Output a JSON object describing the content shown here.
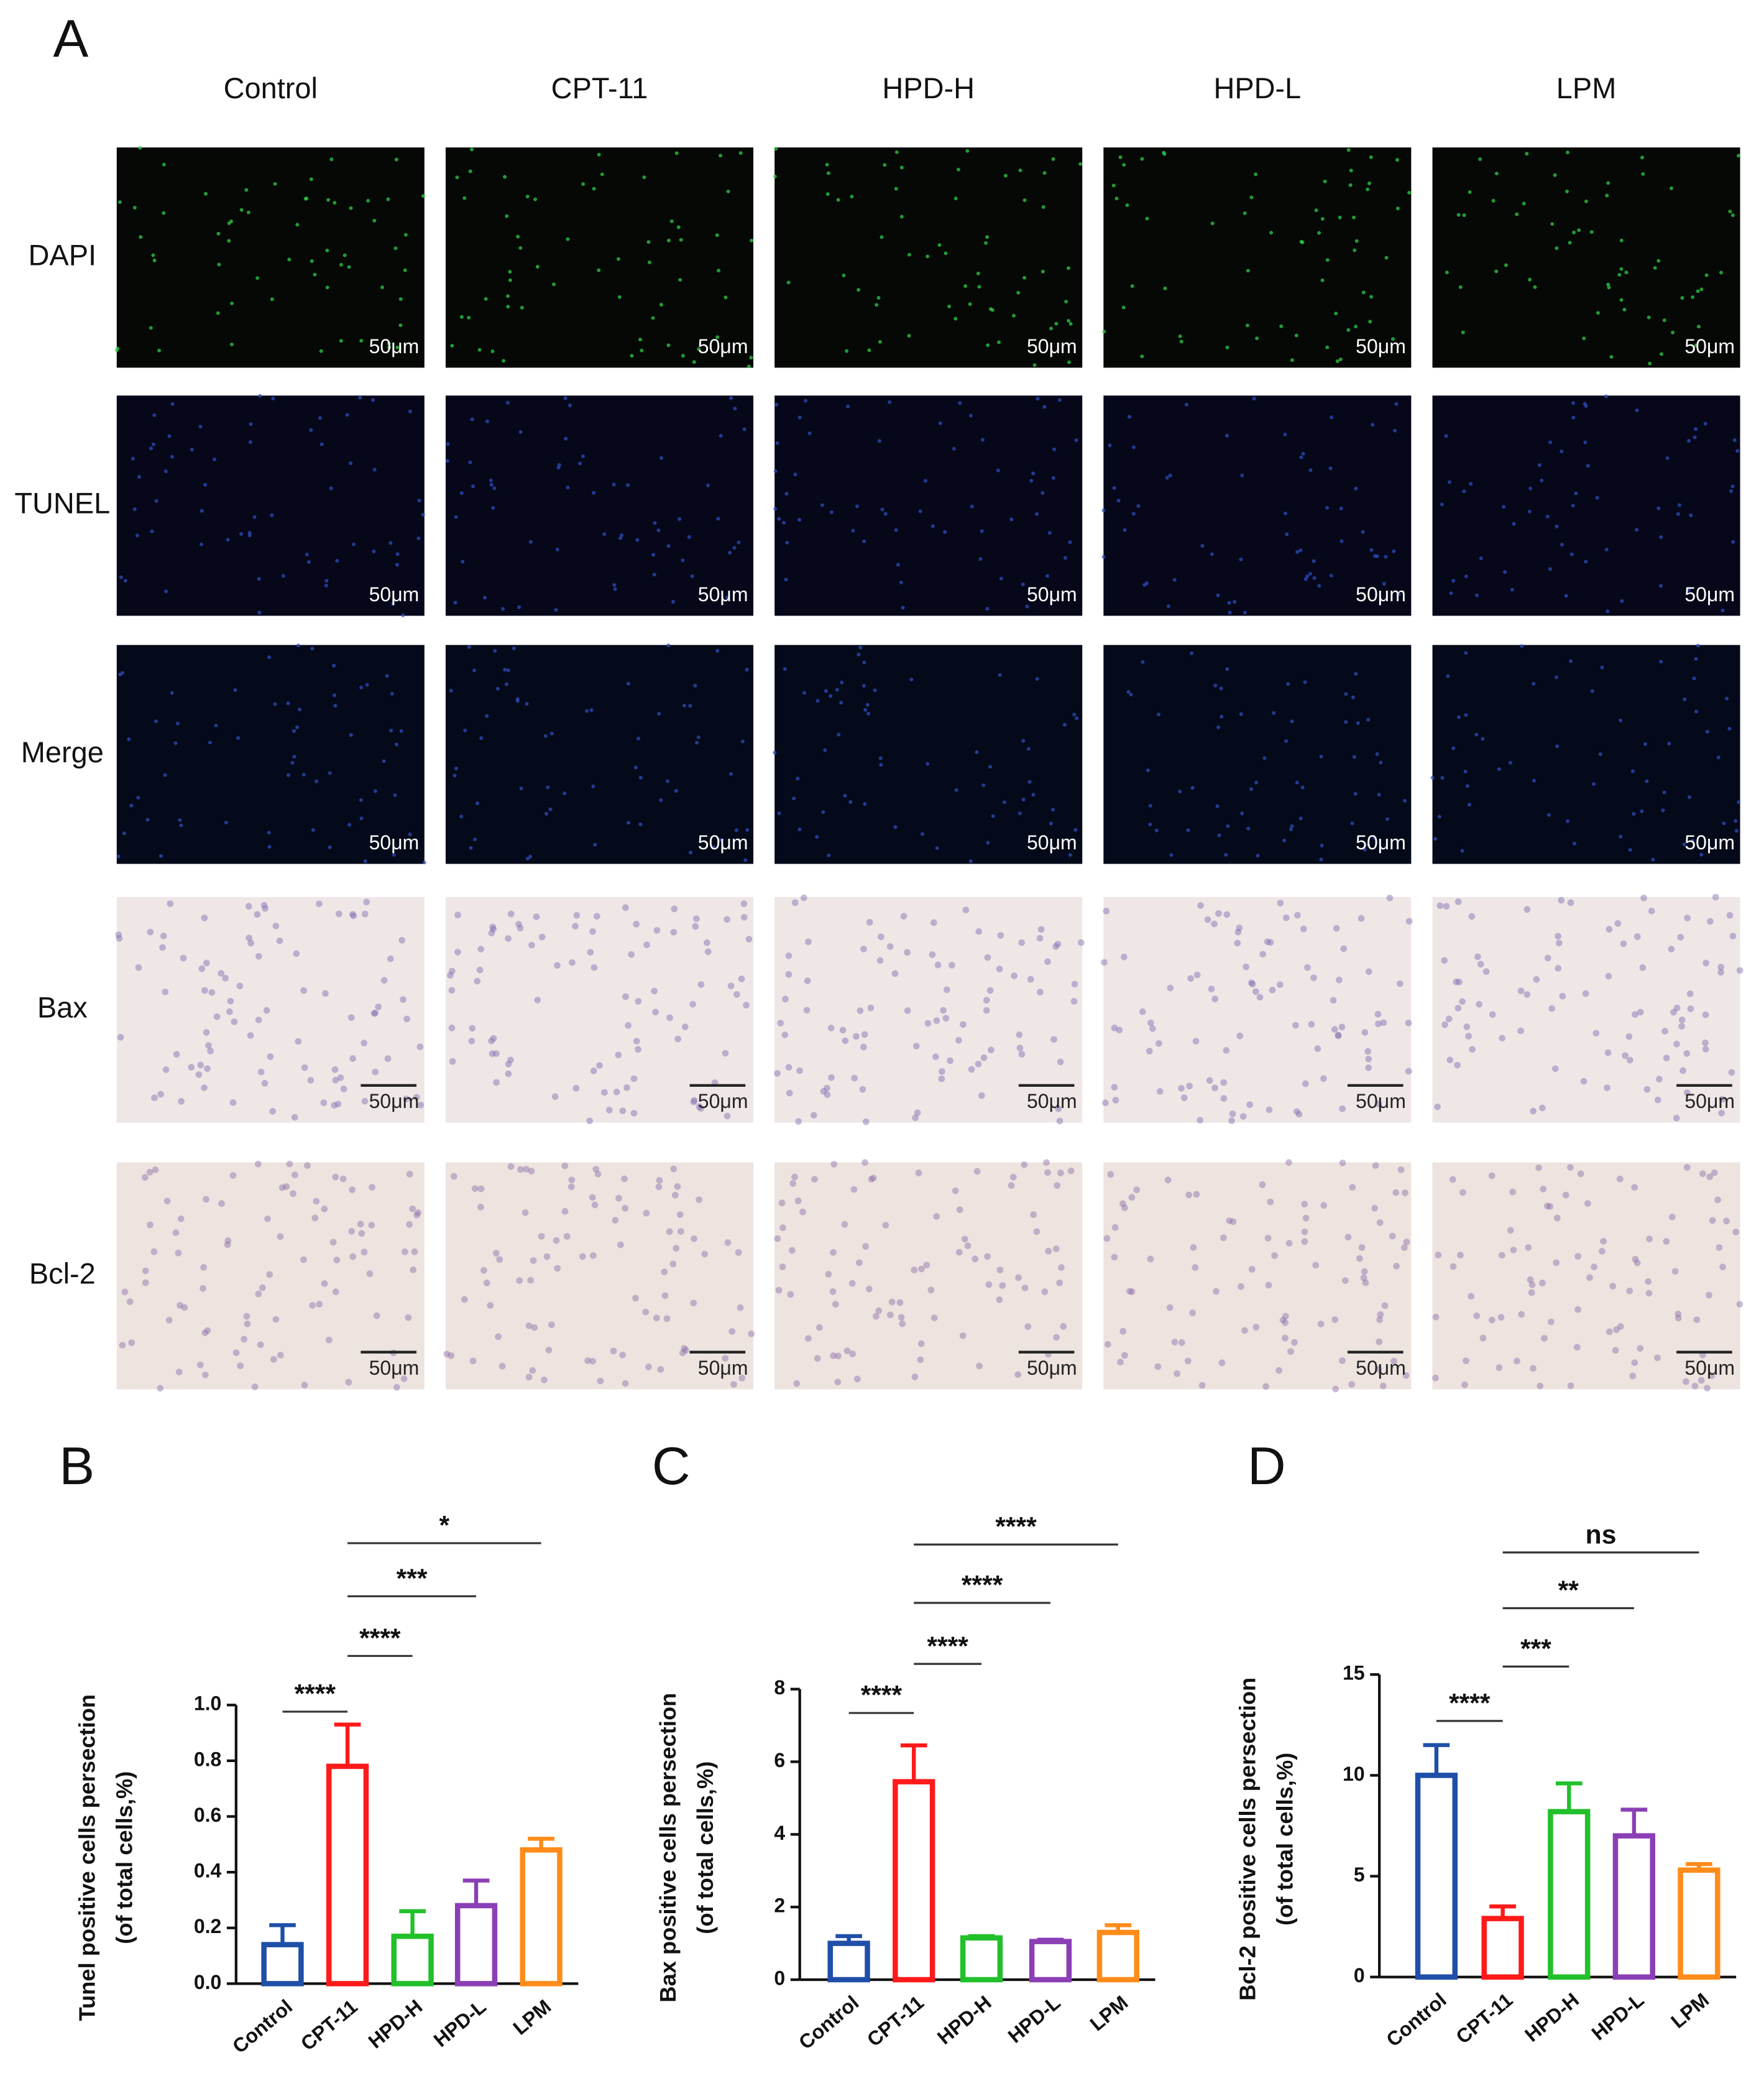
{
  "panel_a": {
    "label": "A",
    "columns": [
      "Control",
      "CPT-11",
      "HPD-H",
      "HPD-L",
      "LPM"
    ],
    "rows": [
      "DAPI",
      "TUNEL",
      "Merge",
      "Bax",
      "Bcl-2"
    ],
    "scale_bar": "50μm"
  },
  "chart_data": [
    {
      "type": "bar",
      "panel": "B",
      "ylabel": [
        "Tunel positive cells persection",
        "(of total cells,%)"
      ],
      "categories": [
        "Control",
        "CPT-11",
        "HPD-H",
        "HPD-L",
        "LPM"
      ],
      "values": [
        0.14,
        0.78,
        0.17,
        0.28,
        0.48
      ],
      "errors": [
        0.07,
        0.15,
        0.09,
        0.09,
        0.04
      ],
      "colors": [
        "#1f4fa8",
        "#ff1a1a",
        "#22c02a",
        "#8b3fb5",
        "#ff8c1a"
      ],
      "ylim": [
        0,
        1
      ],
      "yticks": [
        {
          "value": 0,
          "label": "0.0"
        },
        0.2,
        0.4,
        0.6,
        0.8,
        {
          "value": 1,
          "label": "1.0"
        }
      ],
      "annotations": [
        "****",
        "****",
        "***",
        "*"
      ]
    },
    {
      "type": "bar",
      "panel": "C",
      "ylabel": [
        "Bax positive cells persection",
        "(of total cells,%)"
      ],
      "categories": [
        "Control",
        "CPT-11",
        "HPD-H",
        "HPD-L",
        "LPM"
      ],
      "values": [
        1.0,
        5.45,
        1.15,
        1.05,
        1.3
      ],
      "errors": [
        0.2,
        1.0,
        0.05,
        0.05,
        0.2
      ],
      "colors": [
        "#1f4fa8",
        "#ff1a1a",
        "#22c02a",
        "#8b3fb5",
        "#ff8c1a"
      ],
      "ylim": [
        0,
        8
      ],
      "yticks": [
        0,
        2,
        4,
        6,
        8
      ],
      "annotations": [
        "****",
        "****",
        "****",
        "****"
      ]
    },
    {
      "type": "bar",
      "panel": "D",
      "ylabel": [
        "Bcl-2 positive cells persection",
        "(of total cells,%)"
      ],
      "categories": [
        "Control",
        "CPT-11",
        "HPD-H",
        "HPD-L",
        "LPM"
      ],
      "values": [
        10.0,
        2.9,
        8.2,
        7.0,
        5.3
      ],
      "errors": [
        1.5,
        0.6,
        1.4,
        1.3,
        0.3
      ],
      "colors": [
        "#1f4fa8",
        "#ff1a1a",
        "#22c02a",
        "#8b3fb5",
        "#ff8c1a"
      ],
      "ylim": [
        0,
        15
      ],
      "yticks": [
        0,
        5,
        10,
        15
      ],
      "annotations": [
        "****",
        "***",
        "**",
        "ns"
      ]
    }
  ]
}
